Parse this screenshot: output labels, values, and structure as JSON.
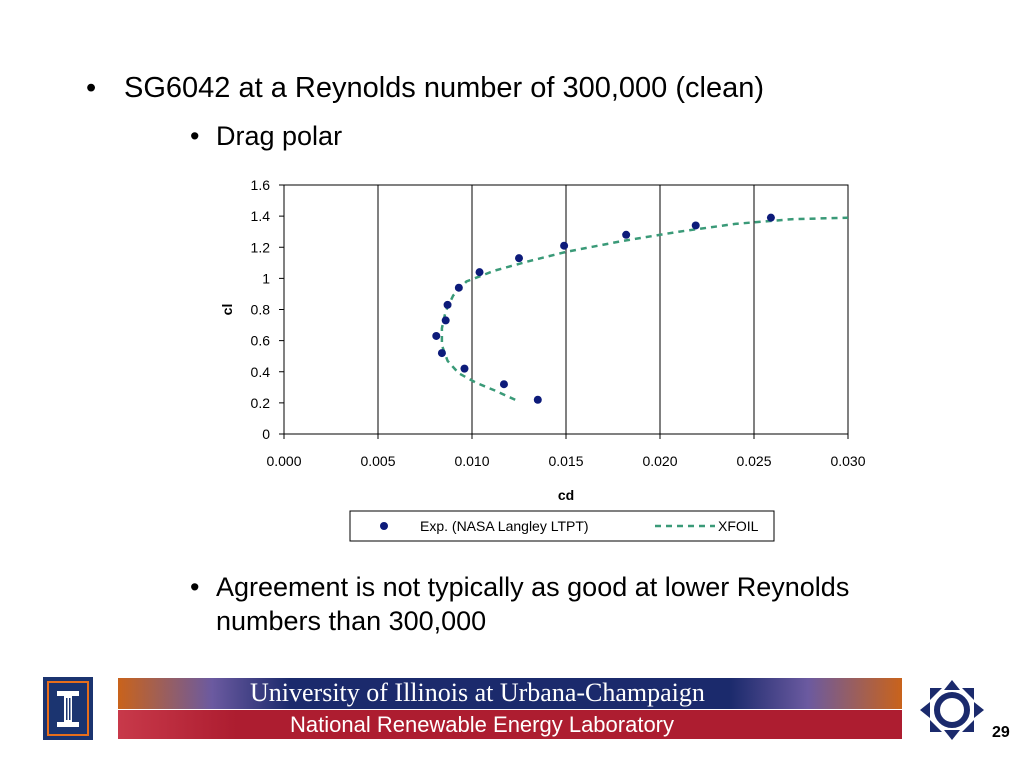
{
  "slide": {
    "bullet_main": "SG6042 at a Reynolds number of 300,000 (clean)",
    "bullet_sub": "Drag polar",
    "bullet_note": "Agreement is not typically as good at lower Reynolds numbers than 300,000",
    "bullet_glyph": "•",
    "page_number": "29"
  },
  "footer": {
    "university": "University of Illinois at Urbana-Champaign",
    "lab": "National Renewable Energy Laboratory",
    "colors": {
      "navy": "#1b2a6c",
      "orange": "#c9631b",
      "red": "#ad1d30"
    }
  },
  "chart_data": {
    "type": "scatter",
    "xlabel": "cd",
    "ylabel": "cl",
    "xlim": [
      0.0,
      0.03
    ],
    "ylim": [
      0,
      1.6
    ],
    "x_ticks": [
      "0.000",
      "0.005",
      "0.010",
      "0.015",
      "0.020",
      "0.025",
      "0.030"
    ],
    "y_ticks": [
      "0",
      "0.2",
      "0.4",
      "0.6",
      "0.8",
      "1",
      "1.2",
      "1.4",
      "1.6"
    ],
    "grid": "vertical lines only",
    "legend_position": "bottom",
    "series": [
      {
        "name": "Exp. (NASA Langley LTPT)",
        "style": "markers",
        "color": "#0d1b7a",
        "points": [
          [
            0.0135,
            0.22
          ],
          [
            0.0117,
            0.32
          ],
          [
            0.0096,
            0.42
          ],
          [
            0.0084,
            0.52
          ],
          [
            0.0081,
            0.63
          ],
          [
            0.0086,
            0.73
          ],
          [
            0.0087,
            0.83
          ],
          [
            0.0093,
            0.94
          ],
          [
            0.0104,
            1.04
          ],
          [
            0.0125,
            1.13
          ],
          [
            0.0149,
            1.21
          ],
          [
            0.0182,
            1.28
          ],
          [
            0.0219,
            1.34
          ],
          [
            0.0259,
            1.39
          ]
        ]
      },
      {
        "name": "XFOIL",
        "style": "dashed-line",
        "color": "#3a9a78",
        "points": [
          [
            0.0123,
            0.22
          ],
          [
            0.0112,
            0.28
          ],
          [
            0.0102,
            0.33
          ],
          [
            0.0093,
            0.39
          ],
          [
            0.0087,
            0.47
          ],
          [
            0.0084,
            0.57
          ],
          [
            0.0084,
            0.68
          ],
          [
            0.0086,
            0.79
          ],
          [
            0.009,
            0.89
          ],
          [
            0.0097,
            0.98
          ],
          [
            0.0112,
            1.05
          ],
          [
            0.013,
            1.11
          ],
          [
            0.015,
            1.17
          ],
          [
            0.018,
            1.24
          ],
          [
            0.021,
            1.3
          ],
          [
            0.024,
            1.35
          ],
          [
            0.027,
            1.38
          ],
          [
            0.03,
            1.39
          ]
        ]
      }
    ]
  }
}
